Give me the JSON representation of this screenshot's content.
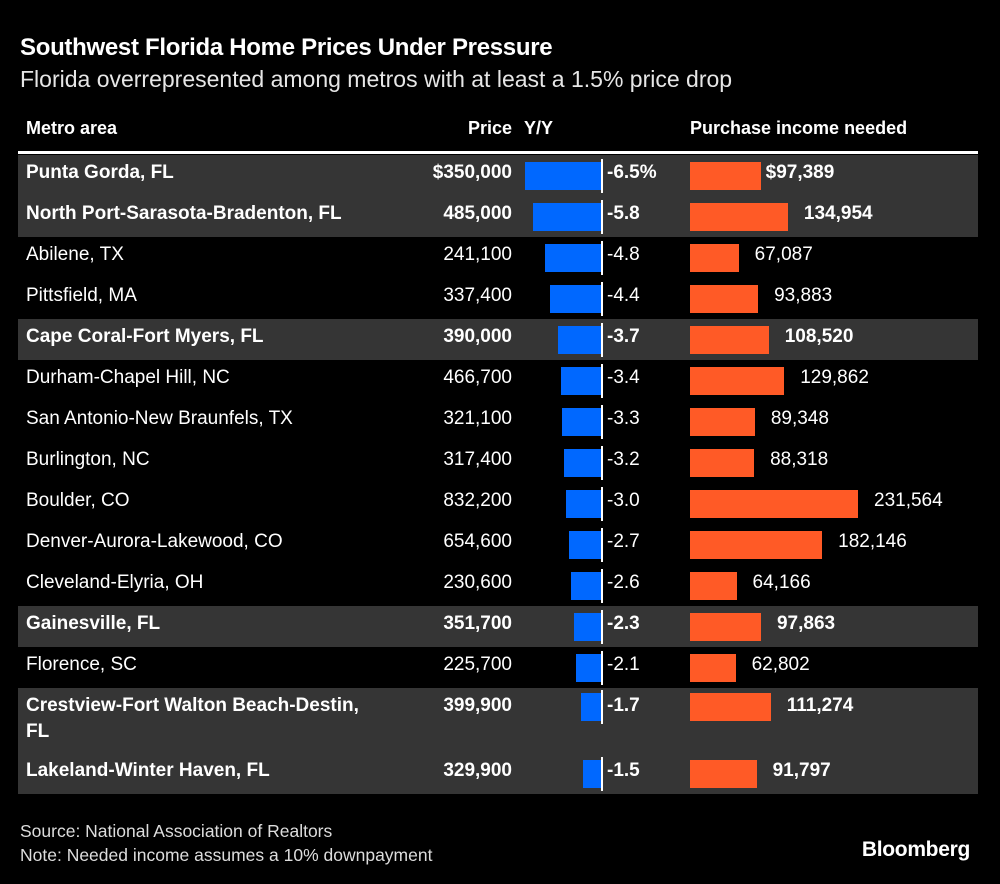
{
  "title": "Southwest Florida Home Prices Under Pressure",
  "subtitle": "Florida overrepresented among metros with at least a 1.5% price drop",
  "chart_data": {
    "type": "table",
    "columns": [
      "Metro area",
      "Price",
      "Y/Y",
      "Purchase income needed"
    ],
    "colors": {
      "yoy_bar": "#0068ff",
      "income_bar": "#ff5a26",
      "highlight_row": "#353535",
      "background": "#000000"
    },
    "rows": [
      {
        "metro": "Punta Gorda, FL",
        "price": "$350,000",
        "yoy": -6.5,
        "yoy_label": "-6.5%",
        "income": 97389,
        "income_label": "$97,389",
        "highlight": true
      },
      {
        "metro": "North Port-Sarasota-Bradenton, FL",
        "price": "485,000",
        "yoy": -5.8,
        "yoy_label": "-5.8",
        "income": 134954,
        "income_label": "134,954",
        "highlight": true
      },
      {
        "metro": "Abilene, TX",
        "price": "241,100",
        "yoy": -4.8,
        "yoy_label": "-4.8",
        "income": 67087,
        "income_label": "67,087",
        "highlight": false
      },
      {
        "metro": "Pittsfield, MA",
        "price": "337,400",
        "yoy": -4.4,
        "yoy_label": "-4.4",
        "income": 93883,
        "income_label": "93,883",
        "highlight": false
      },
      {
        "metro": "Cape Coral-Fort Myers, FL",
        "price": "390,000",
        "yoy": -3.7,
        "yoy_label": "-3.7",
        "income": 108520,
        "income_label": "108,520",
        "highlight": true
      },
      {
        "metro": "Durham-Chapel Hill, NC",
        "price": "466,700",
        "yoy": -3.4,
        "yoy_label": "-3.4",
        "income": 129862,
        "income_label": "129,862",
        "highlight": false
      },
      {
        "metro": "San Antonio-New Braunfels, TX",
        "price": "321,100",
        "yoy": -3.3,
        "yoy_label": "-3.3",
        "income": 89348,
        "income_label": "89,348",
        "highlight": false
      },
      {
        "metro": "Burlington, NC",
        "price": "317,400",
        "yoy": -3.2,
        "yoy_label": "-3.2",
        "income": 88318,
        "income_label": "88,318",
        "highlight": false
      },
      {
        "metro": "Boulder, CO",
        "price": "832,200",
        "yoy": -3.0,
        "yoy_label": "-3.0",
        "income": 231564,
        "income_label": "231,564",
        "highlight": false
      },
      {
        "metro": "Denver-Aurora-Lakewood, CO",
        "price": "654,600",
        "yoy": -2.7,
        "yoy_label": "-2.7",
        "income": 182146,
        "income_label": "182,146",
        "highlight": false
      },
      {
        "metro": "Cleveland-Elyria, OH",
        "price": "230,600",
        "yoy": -2.6,
        "yoy_label": "-2.6",
        "income": 64166,
        "income_label": "64,166",
        "highlight": false
      },
      {
        "metro": "Gainesville, FL",
        "price": "351,700",
        "yoy": -2.3,
        "yoy_label": "-2.3",
        "income": 97863,
        "income_label": "97,863",
        "highlight": true
      },
      {
        "metro": "Florence, SC",
        "price": "225,700",
        "yoy": -2.1,
        "yoy_label": "-2.1",
        "income": 62802,
        "income_label": "62,802",
        "highlight": false
      },
      {
        "metro": "Crestview-Fort Walton Beach-Destin, FL",
        "price": "399,900",
        "yoy": -1.7,
        "yoy_label": "-1.7",
        "income": 111274,
        "income_label": "111,274",
        "highlight": true
      },
      {
        "metro": "Lakeland-Winter Haven, FL",
        "price": "329,900",
        "yoy": -1.5,
        "yoy_label": "-1.5",
        "income": 91797,
        "income_label": "91,797",
        "highlight": true
      }
    ]
  },
  "footer": {
    "source": "Source: National Association of Realtors",
    "note": "Note: Needed income assumes a 10% downpayment",
    "logo": "Bloomberg"
  }
}
